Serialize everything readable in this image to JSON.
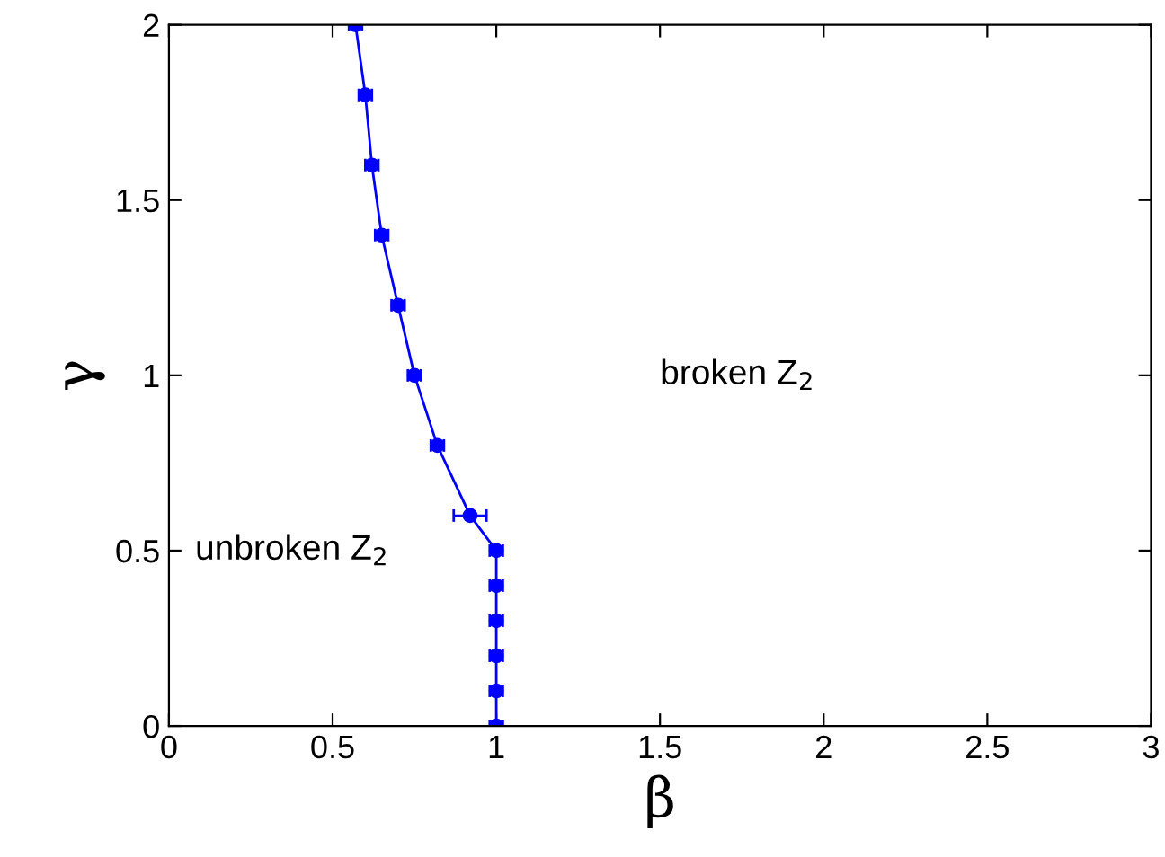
{
  "chart_data": {
    "type": "line",
    "xlabel": "β",
    "ylabel": "γ",
    "x": [
      0.57,
      0.6,
      0.62,
      0.65,
      0.7,
      0.75,
      0.82,
      0.92,
      1.0,
      1.0,
      1.0,
      1.0,
      1.0,
      1.0
    ],
    "values": [
      2.0,
      1.8,
      1.6,
      1.4,
      1.2,
      1.0,
      0.8,
      0.6,
      0.5,
      0.4,
      0.3,
      0.2,
      0.1,
      0.0
    ],
    "xerrors": [
      0.02,
      0.02,
      0.02,
      0.02,
      0.02,
      0.02,
      0.02,
      0.05,
      0.02,
      0.02,
      0.02,
      0.02,
      0.02,
      0.02
    ],
    "color": "#0000ff",
    "marker": "circle",
    "line_style": "solid",
    "xlim": [
      0,
      3
    ],
    "ylim": [
      0,
      2
    ],
    "xticks": [
      0,
      0.5,
      1,
      1.5,
      2,
      2.5,
      3
    ],
    "yticks": [
      0,
      0.5,
      1,
      1.5,
      2
    ],
    "annotations": [
      "broken Z$_{2}$",
      "unbroken Z$_{2}$"
    ],
    "grid": false,
    "legend": false
  }
}
